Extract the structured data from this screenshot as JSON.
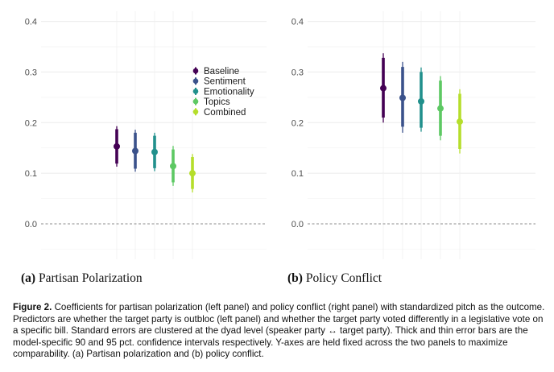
{
  "chart_data": [
    {
      "type": "dot-errorbar",
      "title": "",
      "xlabel": "",
      "ylabel": "",
      "ylim": [
        -0.07,
        0.42
      ],
      "yticks": [
        0.0,
        0.1,
        0.2,
        0.3,
        0.4
      ],
      "ytick_labels": [
        "0.0",
        "0.1",
        "0.2",
        "0.3",
        "0.4"
      ],
      "reference_line": 0.0,
      "grid": true,
      "legend_position": "top-right",
      "series": [
        {
          "name": "Baseline",
          "estimate": 0.153,
          "ci90": [
            0.119,
            0.187
          ],
          "ci95": [
            0.113,
            0.193
          ],
          "color": "#440154"
        },
        {
          "name": "Sentiment",
          "estimate": 0.144,
          "ci90": [
            0.109,
            0.18
          ],
          "ci95": [
            0.103,
            0.186
          ],
          "color": "#3b528b"
        },
        {
          "name": "Emotionality",
          "estimate": 0.142,
          "ci90": [
            0.11,
            0.174
          ],
          "ci95": [
            0.104,
            0.18
          ],
          "color": "#21908c"
        },
        {
          "name": "Topics",
          "estimate": 0.114,
          "ci90": [
            0.082,
            0.147
          ],
          "ci95": [
            0.075,
            0.154
          ],
          "color": "#5dc863"
        },
        {
          "name": "Combined",
          "estimate": 0.1,
          "ci90": [
            0.069,
            0.132
          ],
          "ci95": [
            0.062,
            0.138
          ],
          "color": "#b5de2b"
        }
      ]
    },
    {
      "type": "dot-errorbar",
      "title": "",
      "xlabel": "",
      "ylabel": "",
      "ylim": [
        -0.07,
        0.42
      ],
      "yticks": [
        0.0,
        0.1,
        0.2,
        0.3,
        0.4
      ],
      "ytick_labels": [
        "0.0",
        "0.1",
        "0.2",
        "0.3",
        "0.4"
      ],
      "reference_line": 0.0,
      "grid": true,
      "series": [
        {
          "name": "Baseline",
          "estimate": 0.268,
          "ci90": [
            0.21,
            0.328
          ],
          "ci95": [
            0.2,
            0.337
          ],
          "color": "#440154"
        },
        {
          "name": "Sentiment",
          "estimate": 0.249,
          "ci90": [
            0.192,
            0.31
          ],
          "ci95": [
            0.18,
            0.32
          ],
          "color": "#3b528b"
        },
        {
          "name": "Emotionality",
          "estimate": 0.242,
          "ci90": [
            0.19,
            0.3
          ],
          "ci95": [
            0.182,
            0.309
          ],
          "color": "#21908c"
        },
        {
          "name": "Topics",
          "estimate": 0.228,
          "ci90": [
            0.174,
            0.283
          ],
          "ci95": [
            0.165,
            0.292
          ],
          "color": "#5dc863"
        },
        {
          "name": "Combined",
          "estimate": 0.202,
          "ci90": [
            0.148,
            0.257
          ],
          "ci95": [
            0.139,
            0.266
          ],
          "color": "#b5de2b"
        }
      ]
    }
  ],
  "legend": {
    "labels": [
      "Baseline",
      "Sentiment",
      "Emotionality",
      "Topics",
      "Combined"
    ],
    "colors": [
      "#440154",
      "#3b528b",
      "#21908c",
      "#5dc863",
      "#b5de2b"
    ]
  },
  "subcaptions": {
    "a": {
      "label": "(a)",
      "text": "Partisan Polarization"
    },
    "b": {
      "label": "(b)",
      "text": "Policy Conflict"
    }
  },
  "caption": {
    "label": "Figure 2.",
    "text": "Coefficients for partisan polarization (left panel) and policy conflict (right panel) with standardized pitch as the outcome. Predictors are whether the target party is outbloc (left panel) and whether the target party voted differently in a legislative vote on a specific bill. Standard errors are clustered at the dyad level (speaker party ↔ target party). Thick and thin error bars are the model-specific 90 and 95 pct. confidence intervals respectively. Y-axes are held fixed across the two panels to maximize comparability. (a) Partisan polarization and (b) policy conflict."
  }
}
